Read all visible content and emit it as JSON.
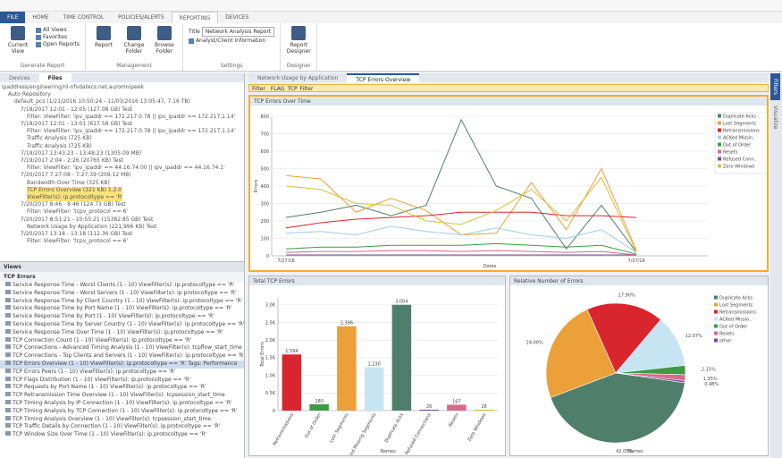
{
  "app": {
    "tabs": [
      "FILE",
      "HOME",
      "TIME CONTROL",
      "POLICIES/ALERTS",
      "REPORTING",
      "DEVICES"
    ],
    "ribbon": {
      "groups": [
        {
          "name": "Generate Report",
          "items": [
            "Current View",
            "All Views",
            "Favorites",
            "Open Reports"
          ]
        },
        {
          "name": "Management",
          "items": [
            "Report",
            "Change Folder",
            "Browse Folder"
          ]
        },
        {
          "name": "Settings",
          "items": [
            "Title",
            "Network Analysis Report",
            "Analyst/Client Information"
          ]
        },
        {
          "name": "Designer",
          "items": [
            "Report Designer"
          ]
        }
      ]
    },
    "left_tabs": [
      "Devices",
      "Files"
    ],
    "tree": {
      "label": "ipaddress/engineering/nl-nfvdatecs.net.au/omnipeek",
      "children": [
        {
          "label": "Auto Repository",
          "children": [
            {
              "label": "default_pcs (1/21/2016 10:50:24 - 11/03/2016 13:05:47, 7.16 TB)",
              "children": [
                {
                  "label": "7/18/2017 12:01 - 12:05 (127.08 GB)  Test",
                  "children": [
                    {
                      "label": "Filter: ViewFilter: 'ipv_ipaddr == 172.217.0.78 || ipv_ipaddr == 172.217.1.14'"
                    }
                  ]
                },
                {
                  "label": "7/18/2017 12:01 - 13:01 (617.58 GB)  Test",
                  "children": [
                    {
                      "label": "Filter: ViewFilter: 'ipv_ipaddr == 172.217.0.78 || ipv_ipaddr == 172.217.1.14'"
                    },
                    {
                      "label": "Traffic Analysis (725 KB)"
                    },
                    {
                      "label": "Traffic Analysis (725 KB)"
                    }
                  ]
                },
                {
                  "label": "7/19/2017 13:43:23 - 13:48:23 (1305.09 MB)"
                },
                {
                  "label": "7/19/2017 2:04 - 2:26 (20765 KB)  Test",
                  "children": [
                    {
                      "label": "Filter: ViewFilter: 'ipv_ipaddr == 44.16.74.00 || ipv_ipaddr == 44.16.74.1'"
                    }
                  ]
                },
                {
                  "label": "7/20/2017 7:27:08 - 7:27:39 (209.12 MB)",
                  "children": [
                    {
                      "label": "Bandwidth Over Time (325 KB)"
                    },
                    {
                      "label": "TCP Errors Overview (321 KB) 1.2.0"
                    },
                    {
                      "label": "ViewFilter(s): ip.protocoltype == 'R'"
                    }
                  ]
                },
                {
                  "label": "7/20/2017 8:46 - 8:46 (124.73 GB)  Test",
                  "children": [
                    {
                      "label": "Filter: ViewFilter: 'tcpv_protocol == 6'"
                    }
                  ]
                },
                {
                  "label": "7/20/2017 8:51:21 - 10:55:21 (15382.85 GB)  Test",
                  "children": [
                    {
                      "label": "Network Usage by Application (221,996 KB)  Test"
                    }
                  ]
                },
                {
                  "label": "7/20/2017 13:18 - 13:18 (112.36 GB)  Test",
                  "children": [
                    {
                      "label": "Filter: ViewFilter: 'tcpv_protocol == 6'"
                    }
                  ]
                }
              ]
            }
          ]
        }
      ]
    },
    "views_header": "Views",
    "views_folder": "TCP Errors",
    "views": [
      "Service Response Time - Worst Clients (1 - 10) ViewFilter(s): ip.protocoltype == 'R'",
      "Service Response Time - Worst Servers (1 - 10) ViewFilter(s): ip.protocoltype == 'R'",
      "Service Response Time by Client Country (1 - 10) ViewFilter(s): ip.protocoltype == 'R'",
      "Service Response Time by Port Name (1 - 10) ViewFilter(s): ip.protocoltype == 'R'",
      "Service Response Time by Port (1 - 10) ViewFilter(s): ip.protocoltype == 'R'",
      "Service Response Time by Server Country (1 - 10) ViewFilter(s): ip.protocoltype == 'R'",
      "Service Response Time Over Time (1 - 10) ViewFilter(s): ip.protocoltype == 'R'",
      "TCP Connection Count (1 - 10) ViewFilter(s): ip.protocoltype == 'R'",
      "TCP Connections - Advanced Timing Analysis (1 - 10) ViewFilter(s): tcpflow_start_time",
      "TCP Connections - Top Clients and Servers (1 - 10) ViewFilter(s): ip.protocoltype == 'R'",
      "TCP Errors Overview (1 - 10) ViewFilter(s): ip.protocoltype == 'R'  Tags: Performance",
      "TCP Errors Peers (1 - 10) ViewFilter(s): ip.protocoltype == 'R'",
      "TCP Flags Distribution (1 - 10) ViewFilter(s): ip.protocoltype == 'R'",
      "TCP Requests by Port Name (1 - 10) ViewFilter(s): ip.protocoltype == 'R'",
      "TCP Retransmission Time Overview (1 - 10) ViewFilter(s): tcpsession_start_time",
      "TCP Timing Analysis by IP Connection (1 - 10) ViewFilter(s): ip.protocoltype == 'R'",
      "TCP Timing Analysis by TCP Connection (1 - 10) ViewFilter(s): ip.protocoltype == 'R'",
      "TCP Timing Analysis Overview (1 - 10) ViewFilter(s): tcpsession_start_time",
      "TCP Traffic Details by Connection (1 - 10) ViewFilter(s): ip.protocoltype == 'R'",
      "TCP Window Size Over Time (1 - 10) ViewFilter(s): ip.protocoltype == 'R'"
    ],
    "doc_tabs": [
      "Network Usage by Application",
      "TCP Errors Overview"
    ],
    "filter_label": "Filter",
    "filter_value": "FLAG_TCP_Filter",
    "side_tabs": [
      "Filters",
      "Visualize"
    ]
  },
  "chart_data": [
    {
      "type": "line",
      "title": "TCP Errors Over Time",
      "y_label": "Errors",
      "x_label": "Dates",
      "categories": [
        "7/27/16",
        null,
        null,
        null,
        null,
        null,
        null,
        null,
        null,
        null,
        "7/27/16"
      ],
      "ylim": [
        0,
        800
      ],
      "yticks": [
        0,
        100,
        200,
        300,
        400,
        500,
        600,
        700,
        800
      ],
      "grid": true,
      "series": [
        {
          "name": "Duplicate Acks",
          "color": "#4f7f6a",
          "values": [
            220,
            250,
            290,
            230,
            290,
            780,
            400,
            330,
            40,
            290,
            20
          ]
        },
        {
          "name": "Lost Segments",
          "color": "#eba03a",
          "values": [
            460,
            440,
            250,
            330,
            260,
            120,
            130,
            420,
            150,
            500,
            30
          ]
        },
        {
          "name": "Retransmissions",
          "color": "#d9262e",
          "values": [
            160,
            190,
            210,
            220,
            230,
            250,
            250,
            250,
            230,
            230,
            220
          ]
        },
        {
          "name": "ACKed Missin..",
          "color": "#9fcde6",
          "values": [
            130,
            140,
            120,
            170,
            140,
            120,
            160,
            120,
            100,
            150,
            20
          ]
        },
        {
          "name": "Out of Order",
          "color": "#3f9a47",
          "values": [
            40,
            50,
            50,
            60,
            60,
            60,
            70,
            60,
            50,
            60,
            10
          ]
        },
        {
          "name": "Resets",
          "color": "#d56a8c",
          "values": [
            20,
            25,
            25,
            30,
            30,
            25,
            30,
            25,
            20,
            25,
            5
          ]
        },
        {
          "name": "Refused Conn..",
          "color": "#7a4f9a",
          "values": [
            5,
            5,
            5,
            5,
            5,
            5,
            5,
            5,
            5,
            5,
            5
          ]
        },
        {
          "name": "Zero Windows",
          "color": "#d9c03a",
          "values": [
            400,
            380,
            300,
            290,
            200,
            180,
            260,
            380,
            200,
            450,
            20
          ]
        }
      ]
    },
    {
      "type": "bar",
      "title": "Total TCP Errors",
      "y_label": "Total Errors",
      "x_label": "Names",
      "categories": [
        "Retransmissions",
        "Out of Order",
        "Lost Segments",
        "ACKed Missing Segments",
        "Duplicate Acks",
        "Refused Connections",
        "Resets",
        "Zero Windows"
      ],
      "values": [
        1594,
        180,
        2396,
        1230,
        3004,
        26,
        167,
        26
      ],
      "value_labels": [
        "1,594",
        "180",
        "2,396",
        "1,230",
        "3,004",
        "26",
        "167",
        "26"
      ],
      "colors": [
        "#d9262e",
        "#3f9a47",
        "#eba03a",
        "#c7e4f2",
        "#4f7f6a",
        "#7a4f9a",
        "#d56a8c",
        "#d9c03a"
      ],
      "ylim": [
        0,
        3200
      ],
      "yticks": [
        0,
        {
          "value": 500,
          "label": "0.5K"
        },
        {
          "value": 1000,
          "label": "1.0K"
        },
        {
          "value": 1500,
          "label": "1.5K"
        },
        {
          "value": 2000,
          "label": "2.0K"
        },
        {
          "value": 2500,
          "label": "2.5K"
        },
        {
          "value": 3000,
          "label": "3.0K"
        }
      ],
      "grid": true
    },
    {
      "type": "pie",
      "title": "Relative Number of Errors",
      "x_label": "Names",
      "categories": [
        "Duplicate Acks",
        "Lost Segments",
        "Retransmissions",
        "ACKed Missin..",
        "Out of Order",
        "Resets",
        "other"
      ],
      "values": [
        42.05,
        24.0,
        17.9,
        12.07,
        2.15,
        1.35,
        0.48
      ],
      "value_labels": [
        "42.05%",
        "24.00%",
        "17.90%",
        "12.07%",
        "2.15%",
        "1.35%",
        "0.48%"
      ],
      "colors": [
        "#4f7f6a",
        "#eba03a",
        "#d9262e",
        "#c7e4f2",
        "#3f9a47",
        "#d56a8c",
        "#7a4f9a"
      ]
    }
  ]
}
